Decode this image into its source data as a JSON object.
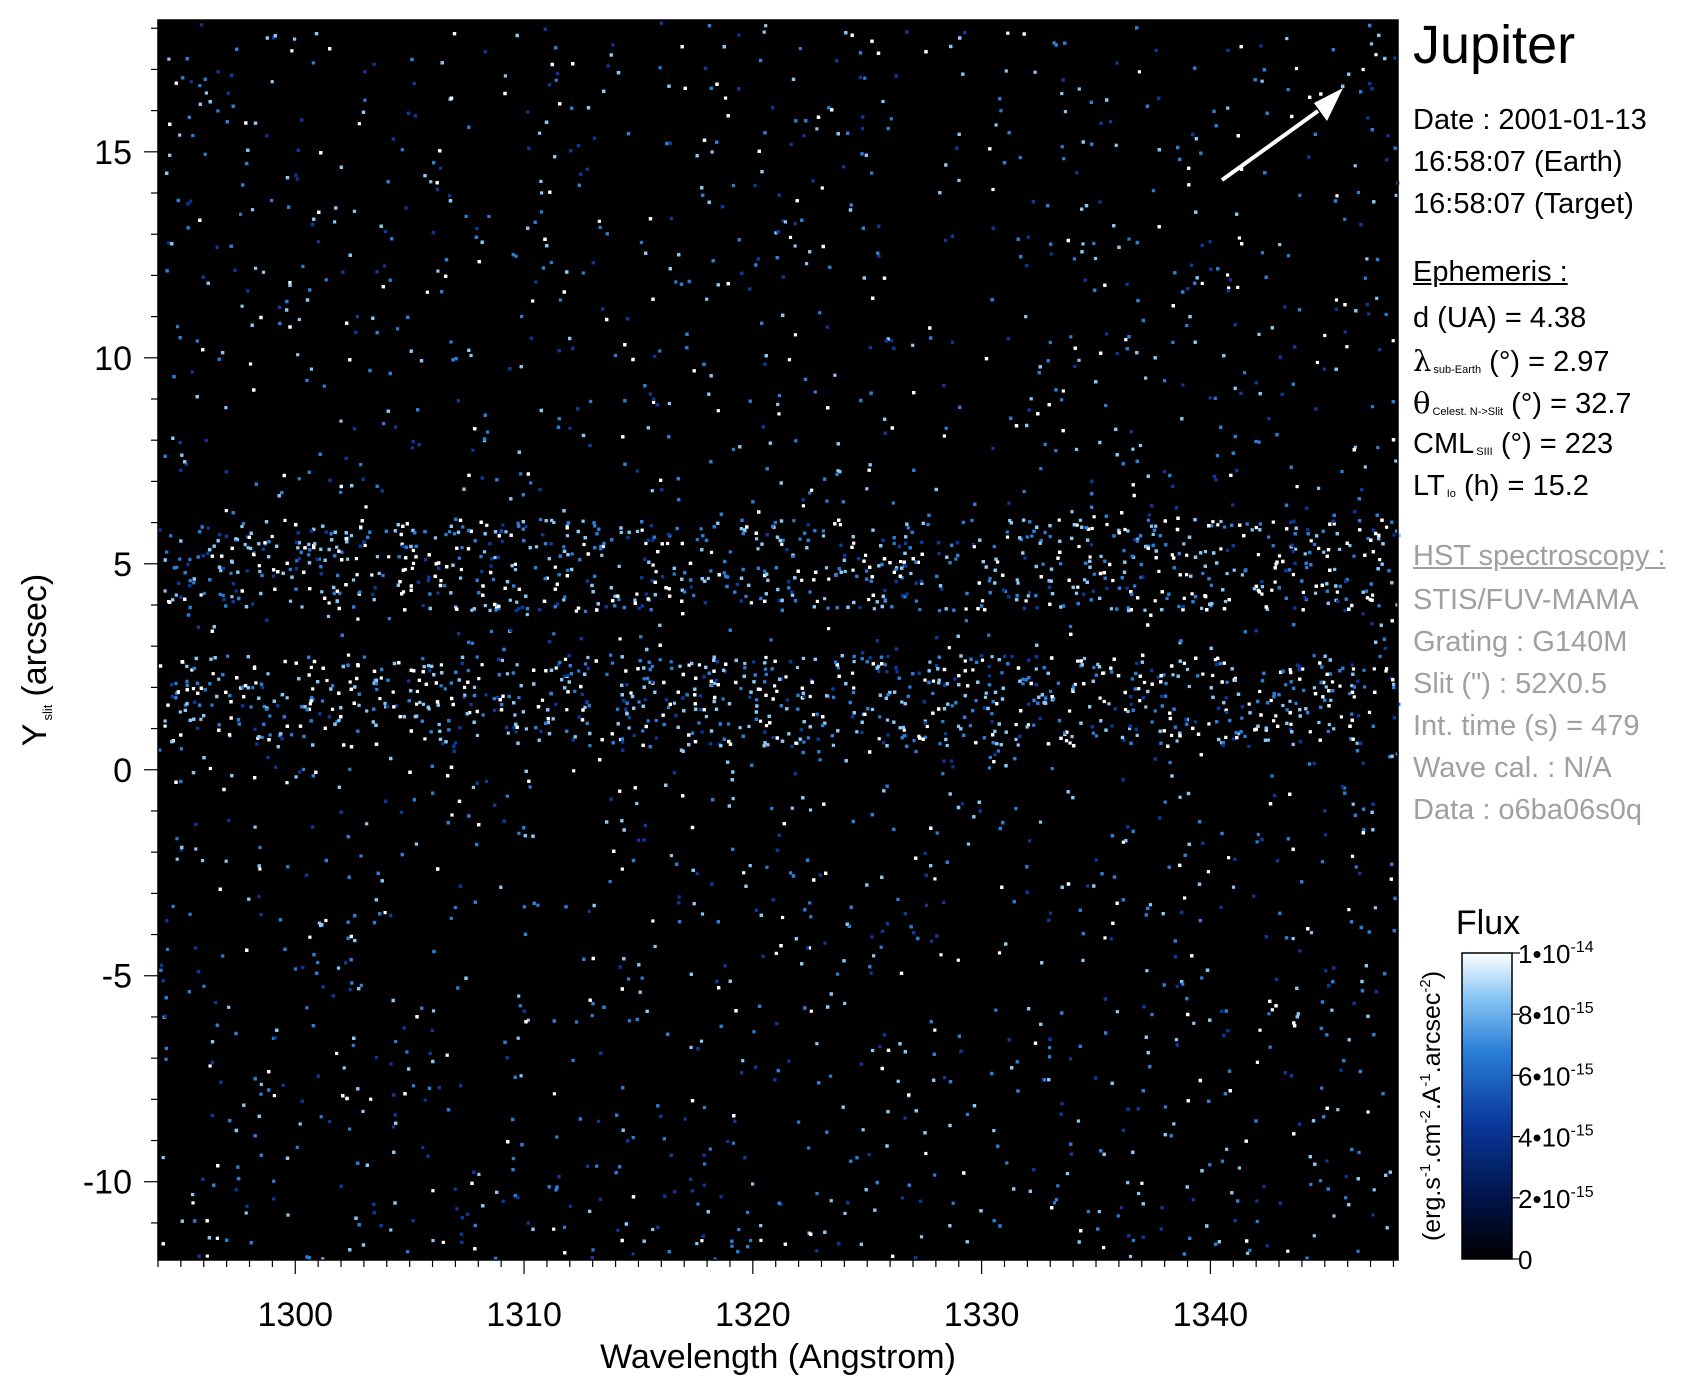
{
  "target": "Jupiter",
  "observation": {
    "date": "Date : 2001-01-13",
    "earth_time": "16:58:07 (Earth)",
    "target_time": "16:58:07 (Target)"
  },
  "ephemeris": {
    "heading": "Ephemeris :",
    "distance": "d (UA)     = 4.38",
    "lambda_symbol": "λ",
    "lambda_sub": "sub-Earth",
    "lambda_value": "(°)  = 2.97",
    "theta_symbol": "θ",
    "theta_sub": "Celest. N->Slit",
    "theta_value": "(°) = 32.7",
    "cml_main": "CML",
    "cml_sub": "SIII",
    "cml_value": "(°) = 223",
    "lt_main": "LT",
    "lt_sub": "Io",
    "lt_value": "(h) = 15.2"
  },
  "instrument": {
    "heading": "HST spectroscopy :",
    "detector": "STIS/FUV-MAMA",
    "grating": "Grating : G140M",
    "slit": "Slit (\") : 52X0.5",
    "int_time": "Int. time (s) = 479",
    "wave_cal": "Wave cal. : N/A",
    "data_id": "Data : o6ba06s0q"
  },
  "colors": {
    "background": "#000000",
    "colormap": [
      "#000000",
      "#00134a",
      "#0a3a9e",
      "#2a7fd8",
      "#8cc8f5",
      "#ffffff"
    ]
  },
  "chart_data": {
    "type": "heatmap",
    "title": "",
    "xlabel": "Wavelength (Angstrom)",
    "ylabel_main": "Y",
    "ylabel_sub": "slit",
    "ylabel_unit": "(arcsec)",
    "xlim": [
      1294,
      1348.2
    ],
    "ylim": [
      -11.9,
      18.2
    ],
    "xticks": [
      1300,
      1310,
      1320,
      1330,
      1340
    ],
    "xtick_labels": [
      "1300",
      "1310",
      "1320",
      "1330",
      "1340"
    ],
    "yticks": [
      -10,
      -5,
      0,
      5,
      10,
      15
    ],
    "ytick_labels": [
      "-10",
      "-5",
      "0",
      "5",
      "10",
      "15"
    ],
    "emission_bands_y": [
      1.7,
      5.0
    ],
    "bright_emission_lines_x": [
      1302.2,
      1304.9,
      1333.7,
      1335.7,
      1338.1,
      1342.3,
      1345.2,
      1347.3
    ],
    "colorbar": {
      "title": "Flux",
      "label": "(erg.s-1.cm-2.A-1.arcsec-2)",
      "range": [
        0,
        1e-14
      ],
      "ticks": [
        0,
        2e-15,
        4e-15,
        6e-15,
        8e-15,
        1e-14
      ],
      "tick_labels": [
        {
          "base": "0",
          "exp": ""
        },
        {
          "base": "2•10",
          "exp": "-15"
        },
        {
          "base": "4•10",
          "exp": "-15"
        },
        {
          "base": "6•10",
          "exp": "-15"
        },
        {
          "base": "8•10",
          "exp": "-15"
        },
        {
          "base": "1•10",
          "exp": "-14"
        }
      ]
    },
    "direction_arrow": {
      "angle_deg": 32.7,
      "placement": "top-right"
    }
  }
}
